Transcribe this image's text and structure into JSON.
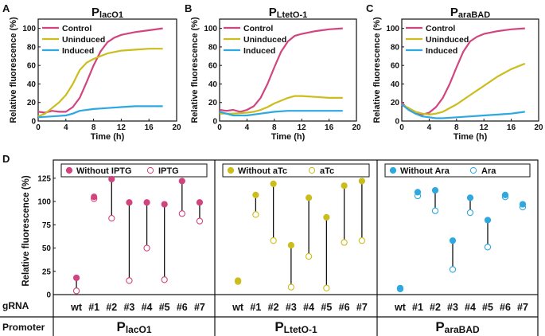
{
  "colors": {
    "pink": "#d1447f",
    "yellow": "#cbbd1c",
    "blue": "#2ea8e0",
    "black": "#111111"
  },
  "chart_data": {
    "top": [
      {
        "panel": "A",
        "type": "line",
        "promoter": "P",
        "subscript": "lacO1",
        "xlabel": "Time (h)",
        "ylabel": "Relative fluorescence (%)",
        "xlim": [
          0,
          20
        ],
        "ylim": [
          0,
          110
        ],
        "xticks": [
          "0",
          "4",
          "8",
          "12",
          "16",
          "20"
        ],
        "yticks": [
          "0",
          "20",
          "40",
          "60",
          "80",
          "100"
        ],
        "legend": [
          "Control",
          "Uninduced",
          "Induced"
        ],
        "series": [
          {
            "name": "Control",
            "color": "pink",
            "x": [
              0,
              1,
              2,
              3,
              4,
              5,
              6,
              7,
              8,
              9,
              10,
              11,
              12,
              14,
              16,
              18
            ],
            "y": [
              10,
              9,
              11,
              10,
              10,
              15,
              25,
              42,
              60,
              75,
              85,
              90,
              93,
              96,
              98,
              100
            ]
          },
          {
            "name": "Uninduced",
            "color": "yellow",
            "x": [
              0,
              1,
              2,
              3,
              4,
              5,
              6,
              7,
              8,
              9,
              10,
              12,
              14,
              16,
              18
            ],
            "y": [
              5,
              8,
              14,
              20,
              28,
              40,
              55,
              63,
              67,
              70,
              73,
              76,
              77,
              78,
              78
            ]
          },
          {
            "name": "Induced",
            "color": "blue",
            "x": [
              0,
              2,
              4,
              5,
              6,
              8,
              10,
              12,
              14,
              16,
              18
            ],
            "y": [
              4,
              5,
              6,
              8,
              11,
              13,
              14,
              15,
              16,
              16,
              16
            ]
          }
        ]
      },
      {
        "panel": "B",
        "type": "line",
        "promoter": "P",
        "subscript": "LtetO-1",
        "xlabel": "Time (h)",
        "ylabel": "Relative fluorescence (%)",
        "xlim": [
          0,
          20
        ],
        "ylim": [
          0,
          110
        ],
        "xticks": [
          "0",
          "4",
          "8",
          "12",
          "16",
          "20"
        ],
        "yticks": [
          "0",
          "20",
          "40",
          "60",
          "80",
          "100"
        ],
        "legend": [
          "Control",
          "Uninduced",
          "Induced"
        ],
        "series": [
          {
            "name": "Control",
            "color": "pink",
            "x": [
              0,
              1,
              2,
              3,
              4,
              5,
              6,
              7,
              8,
              9,
              10,
              11,
              12,
              14,
              16,
              18
            ],
            "y": [
              12,
              11,
              12,
              10,
              12,
              16,
              25,
              40,
              58,
              75,
              86,
              92,
              94,
              97,
              99,
              100
            ]
          },
          {
            "name": "Uninduced",
            "color": "yellow",
            "x": [
              0,
              2,
              4,
              5,
              6,
              7,
              8,
              9,
              10,
              11,
              12,
              14,
              16,
              18
            ],
            "y": [
              8,
              8,
              9,
              10,
              12,
              15,
              19,
              22,
              25,
              27,
              27,
              26,
              25,
              25
            ]
          },
          {
            "name": "Induced",
            "color": "blue",
            "x": [
              0,
              2,
              4,
              6,
              8,
              10,
              12,
              14,
              16,
              18
            ],
            "y": [
              10,
              6,
              6,
              8,
              10,
              11,
              11,
              11,
              11,
              11
            ]
          }
        ]
      },
      {
        "panel": "C",
        "type": "line",
        "promoter": "P",
        "subscript": "araBAD",
        "xlabel": "Time (h)",
        "ylabel": "Relative fluorescence (%)",
        "xlim": [
          0,
          20
        ],
        "ylim": [
          0,
          110
        ],
        "xticks": [
          "0",
          "4",
          "8",
          "12",
          "16",
          "20"
        ],
        "yticks": [
          "0",
          "20",
          "40",
          "60",
          "80",
          "100"
        ],
        "legend": [
          "Control",
          "Uninduced",
          "Induced"
        ],
        "series": [
          {
            "name": "Control",
            "color": "pink",
            "x": [
              0,
              1,
              2,
              3,
              4,
              5,
              6,
              7,
              8,
              9,
              10,
              11,
              12,
              14,
              16,
              18
            ],
            "y": [
              20,
              12,
              8,
              7,
              9,
              15,
              25,
              40,
              58,
              75,
              86,
              91,
              94,
              97,
              99,
              100
            ]
          },
          {
            "name": "Uninduced",
            "color": "yellow",
            "x": [
              0,
              1,
              2,
              3,
              4,
              5,
              6,
              8,
              10,
              12,
              14,
              16,
              18
            ],
            "y": [
              18,
              14,
              10,
              8,
              7,
              8,
              10,
              18,
              28,
              38,
              48,
              56,
              62
            ]
          },
          {
            "name": "Induced",
            "color": "blue",
            "x": [
              0,
              1,
              2,
              3,
              4,
              5,
              6,
              8,
              10,
              12,
              14,
              16,
              17,
              18
            ],
            "y": [
              18,
              12,
              8,
              5,
              4,
              3,
              3,
              4,
              5,
              6,
              7,
              8,
              9,
              10
            ]
          }
        ]
      }
    ],
    "bottom": {
      "panel": "D",
      "type": "dumbbell",
      "ylabel": "Relative fluorescence (%)",
      "ylim": [
        0,
        130
      ],
      "yticks": [
        "0",
        "25",
        "50",
        "75",
        "100",
        "125"
      ],
      "row_label_gRNA": "gRNA",
      "row_label_promoter": "Promoter",
      "categories": [
        "wt",
        "#1",
        "#2",
        "#3",
        "#4",
        "#5",
        "#6",
        "#7"
      ],
      "groups": [
        {
          "promoter": "P",
          "subscript": "lacO1",
          "color": "pink",
          "legend_without": "Without IPTG",
          "legend_with": "IPTG",
          "without": [
            18,
            105,
            124,
            99,
            99,
            97,
            122,
            99
          ],
          "with": [
            4,
            103,
            82,
            15,
            50,
            16,
            87,
            79
          ]
        },
        {
          "promoter": "P",
          "subscript": "LtetO-1",
          "color": "yellow",
          "legend_without": "Without aTc",
          "legend_with": "aTc",
          "without": [
            15,
            107,
            119,
            53,
            104,
            83,
            117,
            122
          ],
          "with": [
            14,
            86,
            58,
            8,
            41,
            7,
            56,
            58
          ]
        },
        {
          "promoter": "P",
          "subscript": "araBAD",
          "color": "blue",
          "legend_without": "Without Ara",
          "legend_with": "Ara",
          "without": [
            7,
            110,
            112,
            58,
            104,
            80,
            107,
            97
          ],
          "with": [
            6,
            106,
            90,
            27,
            88,
            51,
            105,
            94
          ]
        }
      ]
    }
  }
}
